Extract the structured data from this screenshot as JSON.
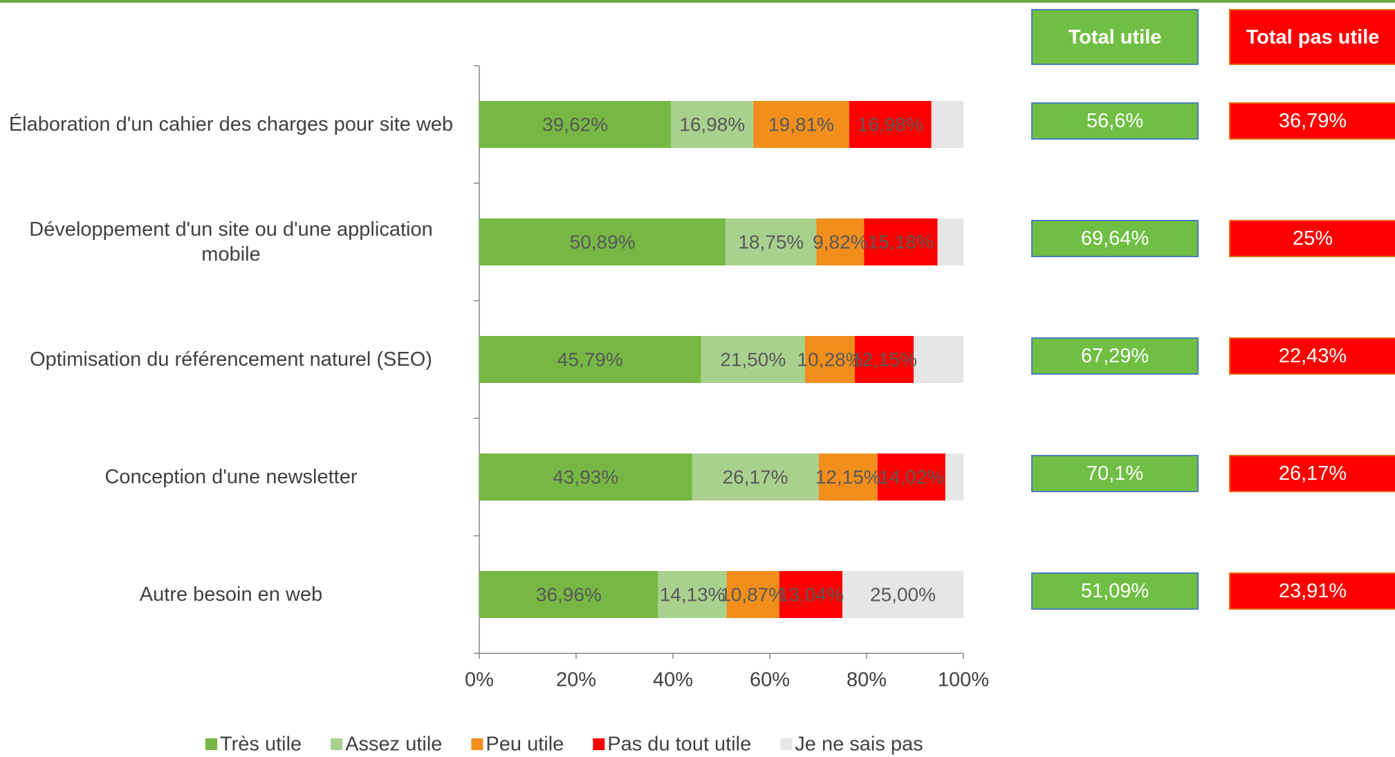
{
  "chart_data": {
    "type": "stacked-barh",
    "categories": [
      "Élaboration d'un cahier des charges pour site web",
      "Développement d'un site ou d'une application mobile",
      "Optimisation du référencement naturel (SEO)",
      "Conception d'une newsletter",
      "Autre besoin en web"
    ],
    "series": [
      {
        "name": "Très utile",
        "color": "#76b843",
        "values": [
          39.62,
          50.89,
          45.79,
          43.93,
          36.96
        ],
        "value_labels": [
          "39,62%",
          "50,89%",
          "45,79%",
          "43,93%",
          "36,96%"
        ]
      },
      {
        "name": "Assez utile",
        "color": "#a9d18e",
        "values": [
          16.98,
          18.75,
          21.5,
          26.17,
          14.13
        ],
        "value_labels": [
          "16,98%",
          "18,75%",
          "21,50%",
          "26,17%",
          "14,13%"
        ]
      },
      {
        "name": "Peu utile",
        "color": "#f28e1c",
        "values": [
          19.81,
          9.82,
          10.28,
          12.15,
          10.87
        ],
        "value_labels": [
          "19,81%",
          "9,82%",
          "10,28%",
          "12,15%",
          "10,87%"
        ]
      },
      {
        "name": "Pas du tout utile",
        "color": "#ff0000",
        "values": [
          16.98,
          15.18,
          12.15,
          14.02,
          13.04
        ],
        "value_labels": [
          "16,98%",
          "15,18%",
          "12,15%",
          "14,02%",
          "13,04%"
        ]
      },
      {
        "name": "Je ne sais pas",
        "color": "#e6e6e6",
        "values": [
          6.61,
          5.36,
          10.28,
          3.73,
          25.0
        ],
        "value_labels": [
          null,
          null,
          null,
          null,
          "25,00%"
        ]
      }
    ],
    "xlim": [
      0,
      100
    ],
    "xticks": [
      {
        "value": 0,
        "label": "0%"
      },
      {
        "value": 20,
        "label": "20%"
      },
      {
        "value": 40,
        "label": "40%"
      },
      {
        "value": 60,
        "label": "60%"
      },
      {
        "value": 80,
        "label": "80%"
      },
      {
        "value": 100,
        "label": "100%"
      }
    ],
    "legend": "bottom",
    "totals": {
      "headers": [
        "Total utile",
        "Total pas utile"
      ],
      "rows": [
        [
          "56,6%",
          "36,79%"
        ],
        [
          "69,64%",
          "25%"
        ],
        [
          "67,29%",
          "22,43%"
        ],
        [
          "70,1%",
          "26,17%"
        ],
        [
          "51,09%",
          "23,91%"
        ]
      ]
    }
  }
}
